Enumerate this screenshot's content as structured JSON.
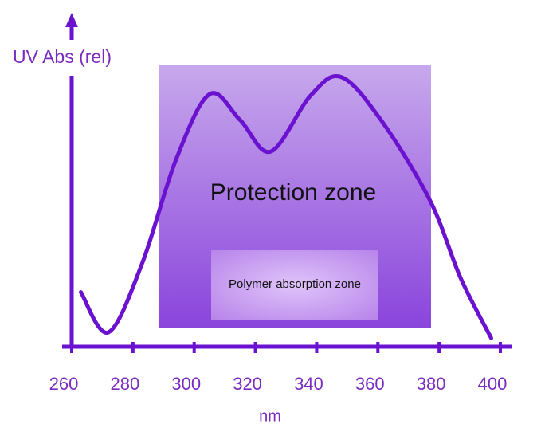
{
  "chart_data": {
    "type": "line",
    "y_label": "UV Abs (rel)",
    "x_label": "nm",
    "annotations": [
      "Protection zone",
      "Polymer absorption zone"
    ],
    "x": [
      263,
      272,
      283,
      294,
      305,
      315,
      325,
      338,
      348,
      361,
      377,
      387,
      397
    ],
    "series": [
      {
        "color": "#6a12d0",
        "values": [
          0.19,
          0.05,
          0.29,
          0.65,
          0.88,
          0.79,
          0.68,
          0.875,
          0.94,
          0.79,
          0.51,
          0.24,
          0.03
        ]
      }
    ],
    "xlim": [
      260,
      400
    ],
    "xticks": [
      260,
      280,
      300,
      320,
      340,
      360,
      380,
      400
    ],
    "ylim": [
      0,
      1
    ]
  }
}
